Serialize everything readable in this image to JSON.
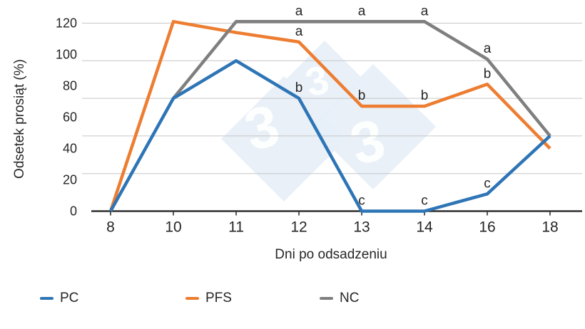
{
  "figure": {
    "background": "#ffffff",
    "gridline_color": "#c6c6c6",
    "axis_color": "#2f2f2f",
    "text_color": "#262626"
  },
  "chart_data": {
    "type": "line",
    "title": "",
    "xlabel": "Dni po odsadzeniu",
    "ylabel": "Odsetek prosiąt (%)",
    "categories": [
      "8",
      "10",
      "11",
      "12",
      "13",
      "14",
      "16",
      "18"
    ],
    "y_ticks": [
      0,
      20,
      40,
      60,
      80,
      100,
      120
    ],
    "ylim": [
      0,
      120
    ],
    "gridline_values": [
      24,
      48,
      72,
      96,
      120
    ],
    "grid": "horizontal-only",
    "legend_position": "bottom",
    "series": [
      {
        "name": "PC",
        "color": "#2e75b6",
        "values": [
          0,
          72,
          96,
          72,
          0,
          0,
          11,
          48
        ]
      },
      {
        "name": "PFS",
        "color": "#ed7d31",
        "values": [
          0,
          121,
          114,
          108,
          67,
          67,
          81,
          40
        ]
      },
      {
        "name": "NC",
        "color": "#7f7f7f",
        "values": [
          null,
          72,
          121,
          121,
          121,
          121,
          97,
          48
        ]
      }
    ],
    "annotations": [
      {
        "series": "NC",
        "x_index": 3,
        "label": "a"
      },
      {
        "series": "NC",
        "x_index": 4,
        "label": "a"
      },
      {
        "series": "NC",
        "x_index": 5,
        "label": "a"
      },
      {
        "series": "NC",
        "x_index": 6,
        "label": "a"
      },
      {
        "series": "PFS",
        "x_index": 3,
        "label": "a"
      },
      {
        "series": "PFS",
        "x_index": 4,
        "label": "b"
      },
      {
        "series": "PFS",
        "x_index": 5,
        "label": "b"
      },
      {
        "series": "PFS",
        "x_index": 6,
        "label": "b"
      },
      {
        "series": "PC",
        "x_index": 3,
        "label": "b"
      },
      {
        "series": "PC",
        "x_index": 4,
        "label": "c"
      },
      {
        "series": "PC",
        "x_index": 5,
        "label": "c"
      },
      {
        "series": "PC",
        "x_index": 6,
        "label": "c"
      }
    ],
    "watermark": {
      "glyph": "3",
      "text": "333",
      "diamond_color": "#e7eef7",
      "text_color": "#ffffff"
    }
  }
}
